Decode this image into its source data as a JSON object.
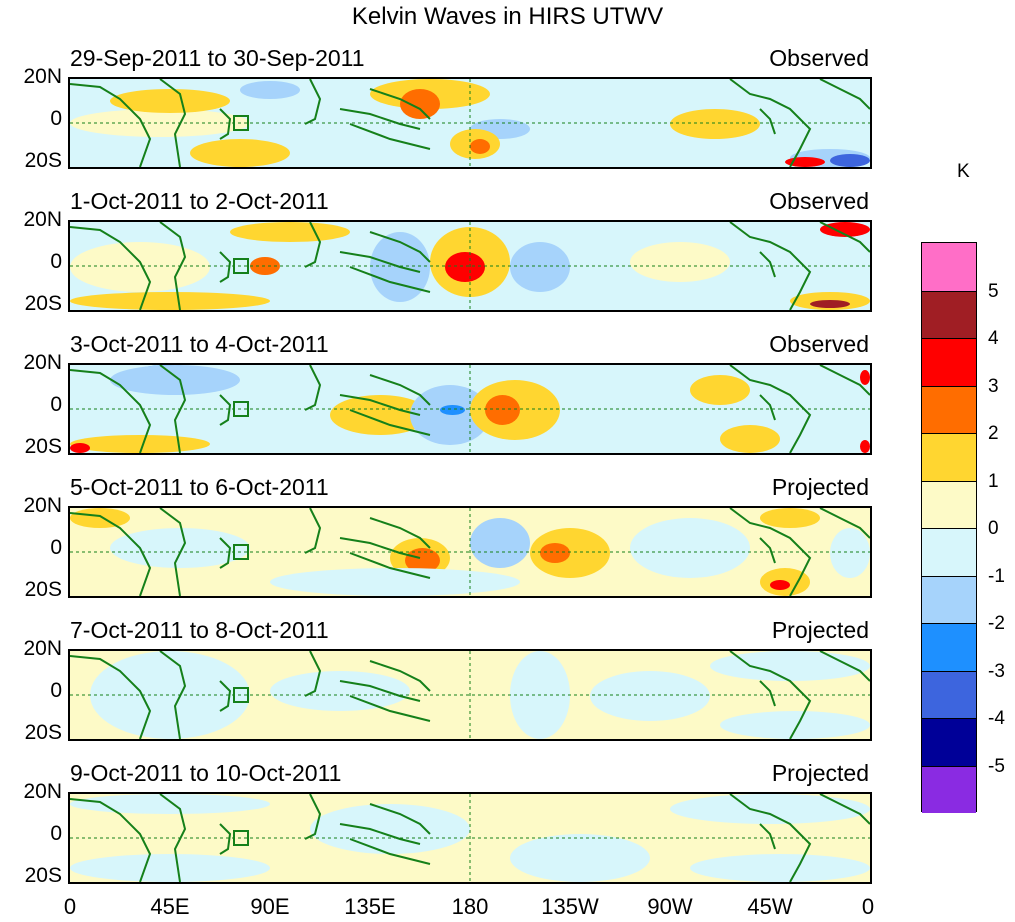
{
  "title": "Kelvin Waves in HIRS UTWV",
  "ylabels": [
    "20N",
    "0",
    "20S"
  ],
  "xlabels": [
    "0",
    "45E",
    "90E",
    "135E",
    "180",
    "135W",
    "90W",
    "45W",
    "0"
  ],
  "panels": [
    {
      "dates": "29-Sep-2011 to 30-Sep-2011",
      "status": "Observed"
    },
    {
      "dates": "1-Oct-2011 to 2-Oct-2011",
      "status": "Observed"
    },
    {
      "dates": "3-Oct-2011 to 4-Oct-2011",
      "status": "Observed"
    },
    {
      "dates": "5-Oct-2011 to 6-Oct-2011",
      "status": "Projected"
    },
    {
      "dates": "7-Oct-2011 to 8-Oct-2011",
      "status": "Projected"
    },
    {
      "dates": "9-Oct-2011 to 10-Oct-2011",
      "status": "Projected"
    }
  ],
  "colorbar": {
    "unit": "K",
    "labels": [
      "5",
      "4",
      "3",
      "2",
      "1",
      "0",
      "-1",
      "-2",
      "-3",
      "-4",
      "-5"
    ],
    "colors": [
      "#ff6ec7",
      "#a01e24",
      "#ff0000",
      "#ff6d00",
      "#ffd630",
      "#fdfac7",
      "#d7f6fb",
      "#a6d3fb",
      "#1e90ff",
      "#3d65de",
      "#000098",
      "#8a2be2"
    ]
  }
}
